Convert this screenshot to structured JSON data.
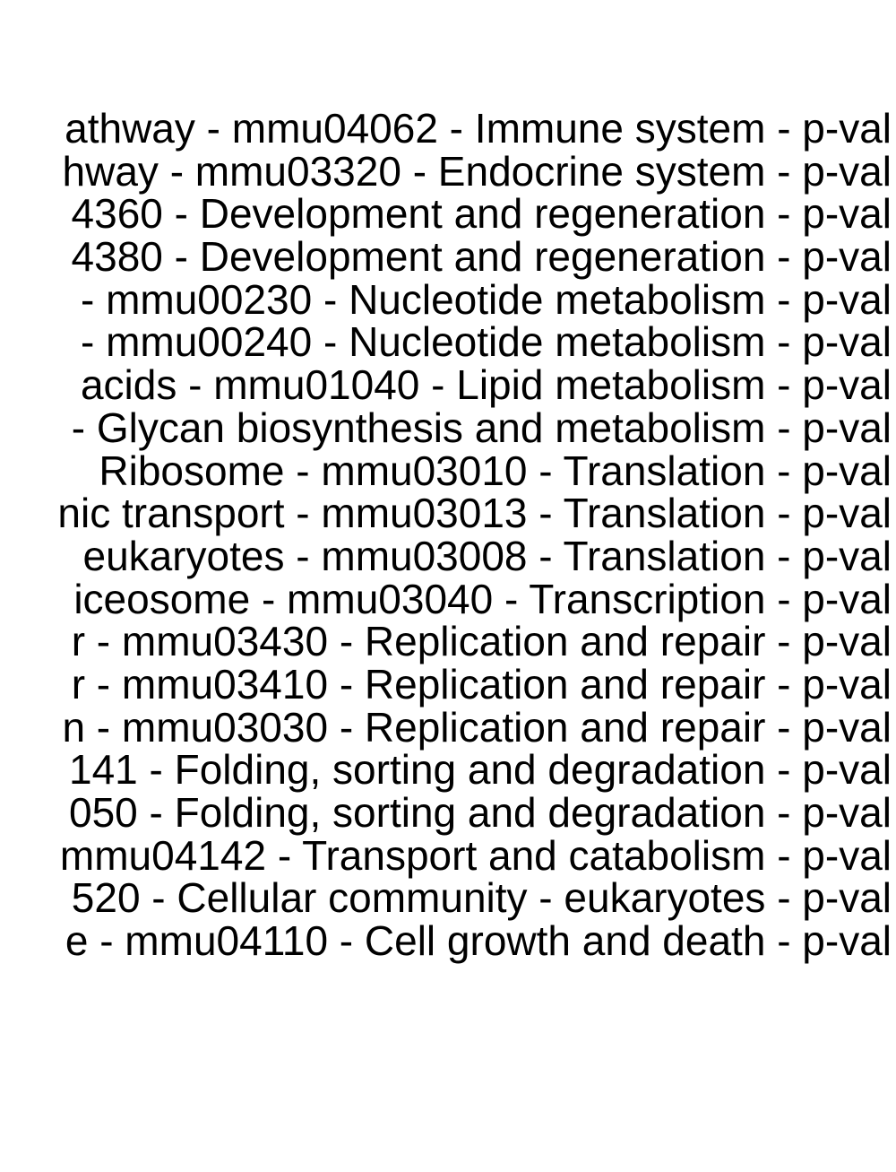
{
  "chart_data": {
    "type": "bar",
    "title": "",
    "xlabel": "",
    "ylabel": "",
    "categories": [
      "athway - mmu04062 - Immune system - p-val",
      "hway - mmu03320 - Endocrine system - p-val",
      "4360 - Development and regeneration - p-val",
      "4380 - Development and regeneration - p-val",
      "- mmu00230 - Nucleotide metabolism - p-val",
      "- mmu00240 - Nucleotide metabolism - p-val",
      "acids - mmu01040 - Lipid metabolism - p-val",
      "- Glycan biosynthesis and metabolism - p-val",
      "Ribosome - mmu03010 - Translation - p-val",
      "nic transport - mmu03013 - Translation - p-val",
      "eukaryotes - mmu03008 - Translation - p-val",
      "iceosome - mmu03040 - Transcription - p-val",
      "r - mmu03430 - Replication and repair - p-val",
      "r - mmu03410 - Replication and repair - p-val",
      "n - mmu03030 - Replication and repair - p-val",
      "141 - Folding, sorting and degradation - p-val",
      "050 - Folding, sorting and degradation - p-val",
      "mmu04142 - Transport and catabolism - p-val",
      "520 - Cellular community - eukaryotes - p-val",
      "e - mmu04110 - Cell growth and death - p-val"
    ],
    "text_color": "#000000",
    "background": "#ffffff"
  }
}
